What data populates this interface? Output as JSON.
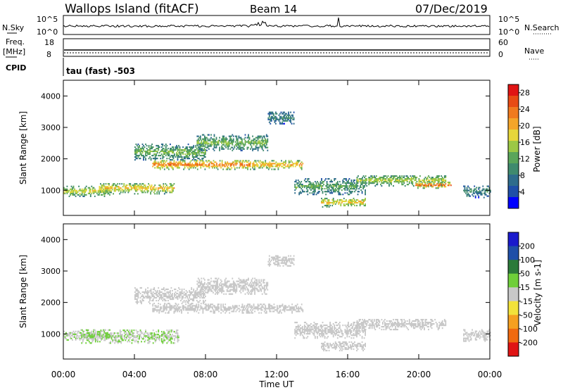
{
  "header": {
    "title": "Wallops Island (fitACF)",
    "beam": "Beam 14",
    "date": "07/Dec/2019"
  },
  "params": {
    "nsky_label": "N.Sky",
    "nsky_top": "10^5",
    "nsky_bottom": "10^0",
    "nsearch_label": "N.Search",
    "nsearch_top": "10^5",
    "nsearch_bottom": "10^0",
    "freq_label": "Freq.",
    "freq_unit": "[MHz]",
    "freq_top": "18",
    "freq_bottom": "8",
    "nave_label": "Nave",
    "nave_top": "60",
    "nave_bottom": "0",
    "cpid_label": "CPID",
    "cpid_value": "tau (fast) -503"
  },
  "colors": {
    "power_scale": [
      "#0000ff",
      "#1f4fa8",
      "#2e6c8c",
      "#3f8a6e",
      "#5aa55a",
      "#9cc845",
      "#e6d63a",
      "#f4a52a",
      "#f07a1e",
      "#e84b14",
      "#e01414"
    ],
    "velocity_scale": [
      "#1a1acc",
      "#1f4fa8",
      "#2c7a3a",
      "#6fcf3a",
      "#c8c8c8",
      "#f2e23a",
      "#f5a020",
      "#f06a10",
      "#e01414"
    ]
  },
  "chart_data": [
    {
      "type": "heatmap",
      "ylabel": "Slant Range [km]",
      "xlabel": "Time UT",
      "xlim": [
        0,
        24
      ],
      "ylim": [
        200,
        4500
      ],
      "x_ticks": [
        "00:00",
        "04:00",
        "08:00",
        "12:00",
        "16:00",
        "20:00",
        "00:00"
      ],
      "y_ticks": [
        "1000",
        "2000",
        "3000",
        "4000"
      ],
      "colorbar": {
        "label": "Power [dB]",
        "range": [
          0,
          30
        ],
        "ticks": [
          "4",
          "8",
          "12",
          "16",
          "20",
          "24",
          "28"
        ]
      },
      "echo_regions": [
        {
          "t": [
            0.0,
            2.6
          ],
          "r_center": 950,
          "r_width": 320,
          "value": 18
        },
        {
          "t": [
            2.0,
            6.2
          ],
          "r_center": 1050,
          "r_width": 360,
          "value": 20
        },
        {
          "t": [
            4.0,
            8.0
          ],
          "r_center": 2200,
          "r_width": 500,
          "value": 14
        },
        {
          "t": [
            5.0,
            10.5
          ],
          "r_center": 1800,
          "r_width": 300,
          "value": 25
        },
        {
          "t": [
            7.5,
            11.5
          ],
          "r_center": 2500,
          "r_width": 500,
          "value": 14
        },
        {
          "t": [
            10.5,
            13.5
          ],
          "r_center": 1800,
          "r_width": 300,
          "value": 22
        },
        {
          "t": [
            11.5,
            13.0
          ],
          "r_center": 3300,
          "r_width": 400,
          "value": 9
        },
        {
          "t": [
            13.0,
            17.0
          ],
          "r_center": 1100,
          "r_width": 500,
          "value": 12
        },
        {
          "t": [
            14.5,
            17.0
          ],
          "r_center": 600,
          "r_width": 300,
          "value": 20
        },
        {
          "t": [
            16.5,
            21.5
          ],
          "r_center": 1300,
          "r_width": 360,
          "value": 16
        },
        {
          "t": [
            19.8,
            21.8
          ],
          "r_center": 1150,
          "r_width": 200,
          "value": 26
        },
        {
          "t": [
            22.5,
            24.0
          ],
          "r_center": 950,
          "r_width": 400,
          "value": 9
        }
      ]
    },
    {
      "type": "heatmap",
      "ylabel": "Slant Range [km]",
      "xlabel": "Time UT",
      "xlim": [
        0,
        24
      ],
      "ylim": [
        200,
        4500
      ],
      "x_ticks": [
        "00:00",
        "04:00",
        "08:00",
        "12:00",
        "16:00",
        "20:00",
        "00:00"
      ],
      "y_ticks": [
        "1000",
        "2000",
        "3000",
        "4000"
      ],
      "colorbar": {
        "label": "Velocity [m s-1]",
        "range": [
          -250,
          250
        ],
        "ticks": [
          "200",
          "100",
          "50",
          "15",
          "-15",
          "-50",
          "-100",
          "-200"
        ]
      },
      "echo_regions": [
        {
          "t": [
            0.0,
            2.6
          ],
          "r_center": 950,
          "r_width": 320,
          "value": 20
        },
        {
          "t": [
            1.0,
            6.5
          ],
          "r_center": 900,
          "r_width": 420,
          "value": 30
        },
        {
          "t": [
            4.0,
            8.0
          ],
          "r_center": 2200,
          "r_width": 500,
          "value": 0
        },
        {
          "t": [
            5.0,
            10.5
          ],
          "r_center": 1800,
          "r_width": 300,
          "value": 0
        },
        {
          "t": [
            7.5,
            11.5
          ],
          "r_center": 2500,
          "r_width": 500,
          "value": 0
        },
        {
          "t": [
            10.5,
            13.5
          ],
          "r_center": 1800,
          "r_width": 300,
          "value": 0
        },
        {
          "t": [
            11.5,
            13.0
          ],
          "r_center": 3300,
          "r_width": 400,
          "value": 0
        },
        {
          "t": [
            13.0,
            17.0
          ],
          "r_center": 1100,
          "r_width": 500,
          "value": 0
        },
        {
          "t": [
            14.5,
            17.0
          ],
          "r_center": 600,
          "r_width": 300,
          "value": 0
        },
        {
          "t": [
            16.5,
            21.5
          ],
          "r_center": 1300,
          "r_width": 360,
          "value": 0
        },
        {
          "t": [
            22.5,
            24.0
          ],
          "r_center": 950,
          "r_width": 400,
          "value": 0
        }
      ]
    }
  ]
}
